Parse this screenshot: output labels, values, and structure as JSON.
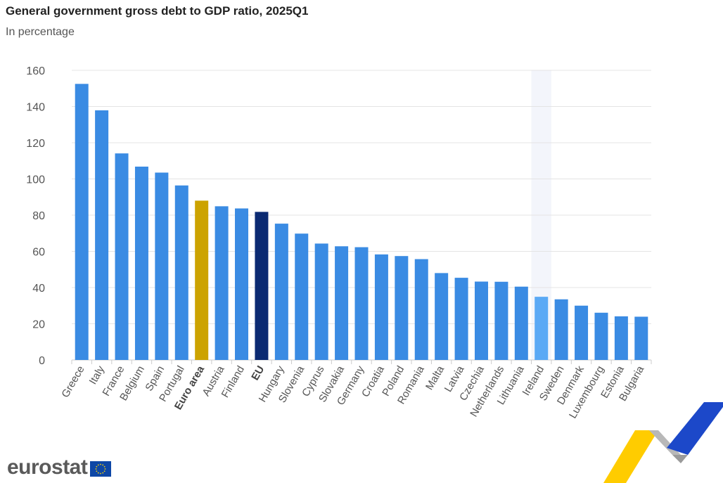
{
  "header": {
    "title": "General government gross debt to GDP ratio, 2025Q1",
    "subtitle": "In percentage"
  },
  "brand": {
    "name": "eurostat"
  },
  "colors": {
    "bar": "#3a8be3",
    "euro_area": "#cca300",
    "eu": "#0b2a72",
    "highlight": "#5aa9f5",
    "grid": "#e4e4e4",
    "axis_text": "#555555",
    "hover_band": "#f3f5fb"
  },
  "chart_data": {
    "type": "bar",
    "title": "General government gross debt to GDP ratio, 2025Q1",
    "subtitle": "In percentage",
    "xlabel": "",
    "ylabel": "",
    "ylim": [
      0,
      160
    ],
    "yticks": [
      0,
      20,
      40,
      60,
      80,
      100,
      120,
      140,
      160
    ],
    "grid": true,
    "highlighted_category": "Ireland",
    "bold_categories": [
      "Euro area",
      "EU"
    ],
    "categories": [
      "Greece",
      "Italy",
      "France",
      "Belgium",
      "Spain",
      "Portugal",
      "Euro area",
      "Austria",
      "Finland",
      "EU",
      "Hungary",
      "Slovenia",
      "Cyprus",
      "Slovakia",
      "Germany",
      "Croatia",
      "Poland",
      "Romania",
      "Malta",
      "Latvia",
      "Czechia",
      "Netherlands",
      "Lithuania",
      "Ireland",
      "Sweden",
      "Denmark",
      "Luxembourg",
      "Estonia",
      "Bulgaria"
    ],
    "values": [
      152.5,
      137.9,
      114.1,
      106.8,
      103.5,
      96.4,
      88.0,
      84.9,
      83.7,
      81.8,
      75.3,
      69.8,
      64.3,
      62.8,
      62.3,
      58.3,
      57.4,
      55.7,
      48.0,
      45.4,
      43.3,
      43.2,
      40.5,
      34.9,
      33.5,
      30.0,
      26.1,
      24.1,
      23.9
    ]
  }
}
